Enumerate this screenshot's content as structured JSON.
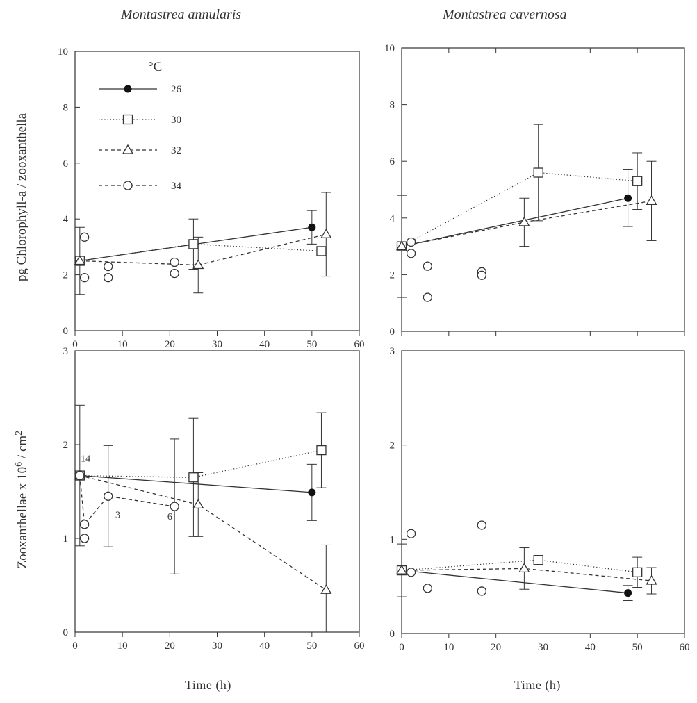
{
  "figure": {
    "col_titles": [
      "Montastrea annularis",
      "Montastrea cavernosa"
    ],
    "ylabel_top": "pg  Chlorophyll-a  /  zooxanthella",
    "ylabel_bottom_main": "Zooxanthellae  x  10",
    "ylabel_bottom_exp": "6",
    "ylabel_bottom_tail": "/  cm",
    "ylabel_bottom_exp2": "2",
    "xlabel": "Time  (h)"
  },
  "legend": {
    "unit": "°C",
    "entries": [
      {
        "label": "26",
        "marker": "filled-circle",
        "line": "solid"
      },
      {
        "label": "30",
        "marker": "open-square",
        "line": "dotted"
      },
      {
        "label": "32",
        "marker": "open-triangle",
        "line": "dashed"
      },
      {
        "label": "34",
        "marker": "open-circle",
        "line": "dashed"
      }
    ]
  },
  "chart_data": [
    {
      "type": "scatter",
      "title": "Montastrea annularis",
      "xlabel": "",
      "ylabel": "pg  Chlorophyll-a  /  zooxanthella",
      "xlim": [
        0,
        60
      ],
      "ylim": [
        0,
        10
      ],
      "xticks": [
        0,
        10,
        20,
        30,
        40,
        50,
        60
      ],
      "yticks": [
        0,
        2,
        4,
        6,
        8,
        10
      ],
      "series": [
        {
          "name": "26",
          "marker": "filled-circle",
          "line": "solid",
          "x": [
            1,
            50
          ],
          "y": [
            2.5,
            3.7
          ],
          "err": [
            1.2,
            0.6
          ]
        },
        {
          "name": "30",
          "marker": "open-square",
          "line": "dotted",
          "x": [
            1,
            25,
            52
          ],
          "y": [
            2.5,
            3.1,
            2.85
          ],
          "err": [
            0,
            0.9,
            0
          ]
        },
        {
          "name": "32",
          "marker": "open-triangle",
          "line": "dashed",
          "x": [
            1,
            26,
            53
          ],
          "y": [
            2.5,
            2.35,
            3.45
          ],
          "err": [
            0,
            1.0,
            1.5
          ]
        },
        {
          "name": "34",
          "marker": "open-circle",
          "line": "none",
          "x": [
            2,
            2,
            7,
            7,
            21,
            21
          ],
          "y": [
            3.35,
            1.9,
            2.3,
            1.9,
            2.45,
            2.05
          ],
          "err": []
        }
      ],
      "annotations": []
    },
    {
      "type": "scatter",
      "title": "Montastrea cavernosa",
      "xlabel": "",
      "ylabel": "",
      "xlim": [
        0,
        60
      ],
      "ylim": [
        0,
        10
      ],
      "xticks": [],
      "yticks": [
        0,
        2,
        4,
        6,
        8,
        10
      ],
      "series": [
        {
          "name": "26",
          "marker": "filled-circle",
          "line": "solid",
          "x": [
            0,
            48
          ],
          "y": [
            3.0,
            4.7
          ],
          "err": [
            1.8,
            1.0
          ]
        },
        {
          "name": "30",
          "marker": "open-square",
          "line": "dotted",
          "x": [
            0,
            29,
            50
          ],
          "y": [
            3.0,
            5.6,
            5.3
          ],
          "err": [
            0,
            1.7,
            1.0
          ]
        },
        {
          "name": "32",
          "marker": "open-triangle",
          "line": "dashed",
          "x": [
            0,
            26,
            53
          ],
          "y": [
            3.0,
            3.85,
            4.6
          ],
          "err": [
            0,
            0.85,
            1.4
          ]
        },
        {
          "name": "34",
          "marker": "open-circle",
          "line": "none",
          "x": [
            2,
            2,
            5.5,
            5.5,
            17,
            17
          ],
          "y": [
            3.15,
            2.75,
            2.3,
            1.2,
            2.1,
            1.98
          ],
          "err": []
        }
      ],
      "annotations": []
    },
    {
      "type": "scatter",
      "title": "",
      "xlabel": "Time  (h)",
      "ylabel": "Zooxanthellae x 10^6 / cm^2",
      "xlim": [
        0,
        60
      ],
      "ylim": [
        0,
        3
      ],
      "xticks": [
        0,
        10,
        20,
        30,
        40,
        50,
        60
      ],
      "yticks": [
        0,
        1,
        2,
        3
      ],
      "series": [
        {
          "name": "26",
          "marker": "filled-circle",
          "line": "solid",
          "x": [
            1,
            50
          ],
          "y": [
            1.67,
            1.49
          ],
          "err": [
            0.75,
            0.3
          ]
        },
        {
          "name": "30",
          "marker": "open-square",
          "line": "dotted",
          "x": [
            1,
            25,
            52
          ],
          "y": [
            1.67,
            1.65,
            1.94
          ],
          "err": [
            0,
            0.63,
            0.4
          ]
        },
        {
          "name": "32",
          "marker": "open-triangle",
          "line": "dashed",
          "x": [
            1,
            26,
            53
          ],
          "y": [
            1.67,
            1.36,
            0.45
          ],
          "err": [
            0,
            0.34,
            0.48
          ]
        },
        {
          "name": "34",
          "marker": "open-circle",
          "line": "dashed",
          "x": [
            1,
            2,
            7,
            21
          ],
          "y": [
            1.67,
            1.15,
            1.45,
            1.34
          ],
          "err": [
            0,
            0,
            0.54,
            0.72
          ]
        },
        {
          "name": "",
          "marker": "open-circle",
          "line": "none",
          "x": [
            2
          ],
          "y": [
            1.0
          ],
          "err": []
        }
      ],
      "annotations": [
        {
          "text": "14",
          "x": 1.2,
          "y": 1.82
        },
        {
          "text": "3",
          "x": 8.5,
          "y": 1.22
        },
        {
          "text": "6",
          "x": 19.5,
          "y": 1.2
        }
      ]
    },
    {
      "type": "scatter",
      "title": "",
      "xlabel": "Time  (h)",
      "ylabel": "",
      "xlim": [
        0,
        60
      ],
      "ylim": [
        0,
        3
      ],
      "xticks": [
        0,
        10,
        20,
        30,
        40,
        50,
        60
      ],
      "yticks": [
        0,
        1,
        2,
        3
      ],
      "series": [
        {
          "name": "26",
          "marker": "filled-circle",
          "line": "solid",
          "x": [
            0,
            48
          ],
          "y": [
            0.67,
            0.43
          ],
          "err": [
            0.28,
            0.08
          ]
        },
        {
          "name": "30",
          "marker": "open-square",
          "line": "dotted",
          "x": [
            0,
            29,
            50
          ],
          "y": [
            0.67,
            0.78,
            0.65
          ],
          "err": [
            0,
            0,
            0.16
          ]
        },
        {
          "name": "32",
          "marker": "open-triangle",
          "line": "dashed",
          "x": [
            0,
            26,
            53
          ],
          "y": [
            0.67,
            0.69,
            0.56
          ],
          "err": [
            0,
            0.22,
            0.14
          ]
        },
        {
          "name": "34",
          "marker": "open-circle",
          "line": "none",
          "x": [
            2,
            2,
            5.5,
            17,
            17
          ],
          "y": [
            1.06,
            0.65,
            0.48,
            1.15,
            0.45
          ],
          "err": []
        }
      ],
      "annotations": []
    }
  ]
}
